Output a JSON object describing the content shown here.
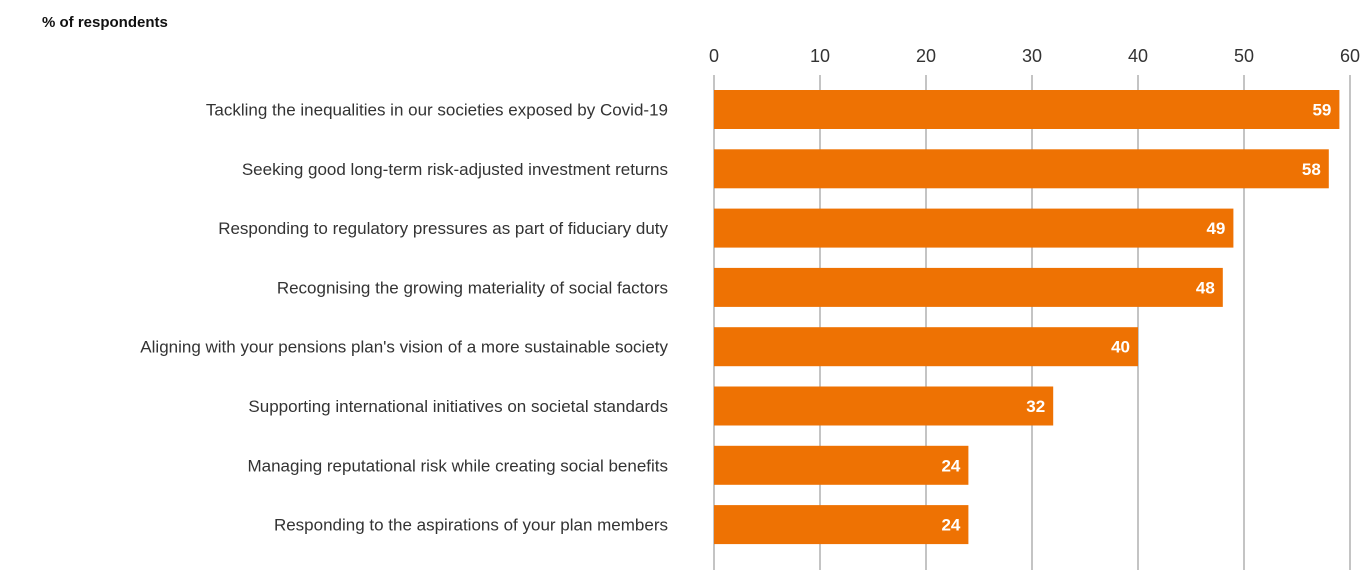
{
  "chart_data": {
    "type": "bar",
    "orientation": "horizontal",
    "ylabel": "% of respondents",
    "categories": [
      "Tackling the inequalities in our societies exposed by Covid-19",
      "Seeking good long-term risk-adjusted investment returns",
      "Responding to regulatory pressures as part of fiduciary duty",
      "Recognising the growing materiality of social factors",
      "Aligning with your pensions plan's vision of a more sustainable society",
      "Supporting international initiatives on societal standards",
      "Managing reputational risk while creating social benefits",
      "Responding to the aspirations of your plan members"
    ],
    "values": [
      59,
      58,
      49,
      48,
      40,
      32,
      24,
      24
    ],
    "xticks": [
      "0",
      "10",
      "20",
      "30",
      "40",
      "50",
      "60"
    ],
    "xlim": [
      0,
      60
    ],
    "axis_position": "top",
    "grid": true,
    "bar_color": "#ee7203",
    "gridline_color": "#888888"
  }
}
